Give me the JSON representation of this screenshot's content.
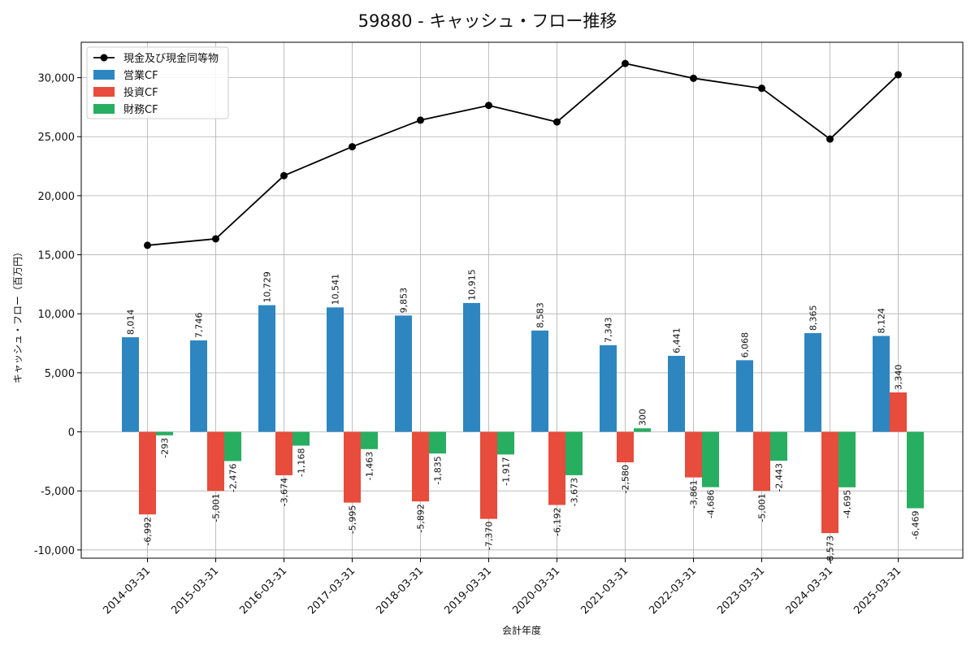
{
  "chart_data": {
    "type": "bar",
    "title": "59880 - キャッシュ・フロー推移",
    "xlabel": "会計年度",
    "ylabel": "キャッシュ・フロー（百万円）",
    "ylim": [
      -10700,
      33000
    ],
    "yticks": [
      -10000,
      -5000,
      0,
      5000,
      10000,
      15000,
      20000,
      25000,
      30000
    ],
    "ytick_labels": [
      "-10,000",
      "-5,000",
      "0",
      "5,000",
      "10,000",
      "15,000",
      "20,000",
      "25,000",
      "30,000"
    ],
    "grid": true,
    "legend_position": "top-left",
    "categories": [
      "2014-03-31",
      "2015-03-31",
      "2016-03-31",
      "2017-03-31",
      "2018-03-31",
      "2019-03-31",
      "2020-03-31",
      "2021-03-31",
      "2022-03-31",
      "2023-03-31",
      "2024-03-31",
      "2025-03-31"
    ],
    "series": [
      {
        "name": "営業CF",
        "type": "bar",
        "color": "#2e86c1",
        "values": [
          8014,
          7746,
          10729,
          10541,
          9853,
          10915,
          8583,
          7343,
          6441,
          6068,
          8365,
          8124
        ],
        "labels": [
          "8,014",
          "7,746",
          "10,729",
          "10,541",
          "9,853",
          "10,915",
          "8,583",
          "7,343",
          "6,441",
          "6,068",
          "8,365",
          "8,124"
        ]
      },
      {
        "name": "投資CF",
        "type": "bar",
        "color": "#e74c3c",
        "values": [
          -6992,
          -5001,
          -3674,
          -5995,
          -5892,
          -7370,
          -6192,
          -2580,
          -3861,
          -5001,
          -8573,
          3340
        ],
        "labels": [
          "-6,992",
          "-5,001",
          "-3,674",
          "-5,995",
          "-5,892",
          "-7,370",
          "-6,192",
          "-2,580",
          "-3,861",
          "-5,001",
          "-8,573",
          "3,340"
        ]
      },
      {
        "name": "財務CF",
        "type": "bar",
        "color": "#27ae60",
        "values": [
          -293,
          -2476,
          -1168,
          -1463,
          -1835,
          -1917,
          -3673,
          300,
          -4686,
          -2443,
          -4695,
          -6469
        ],
        "labels": [
          "-293",
          "-2,476",
          "-1,168",
          "-1,463",
          "-1,835",
          "-1,917",
          "-3,673",
          "300",
          "-4,686",
          "-2,443",
          "-4,695",
          "-6,469"
        ]
      },
      {
        "name": "現金及び現金同等物",
        "type": "line",
        "color": "#000000",
        "values": [
          15800,
          16350,
          21700,
          24150,
          26400,
          27650,
          26250,
          31200,
          29950,
          29100,
          24800,
          30250
        ]
      }
    ]
  }
}
